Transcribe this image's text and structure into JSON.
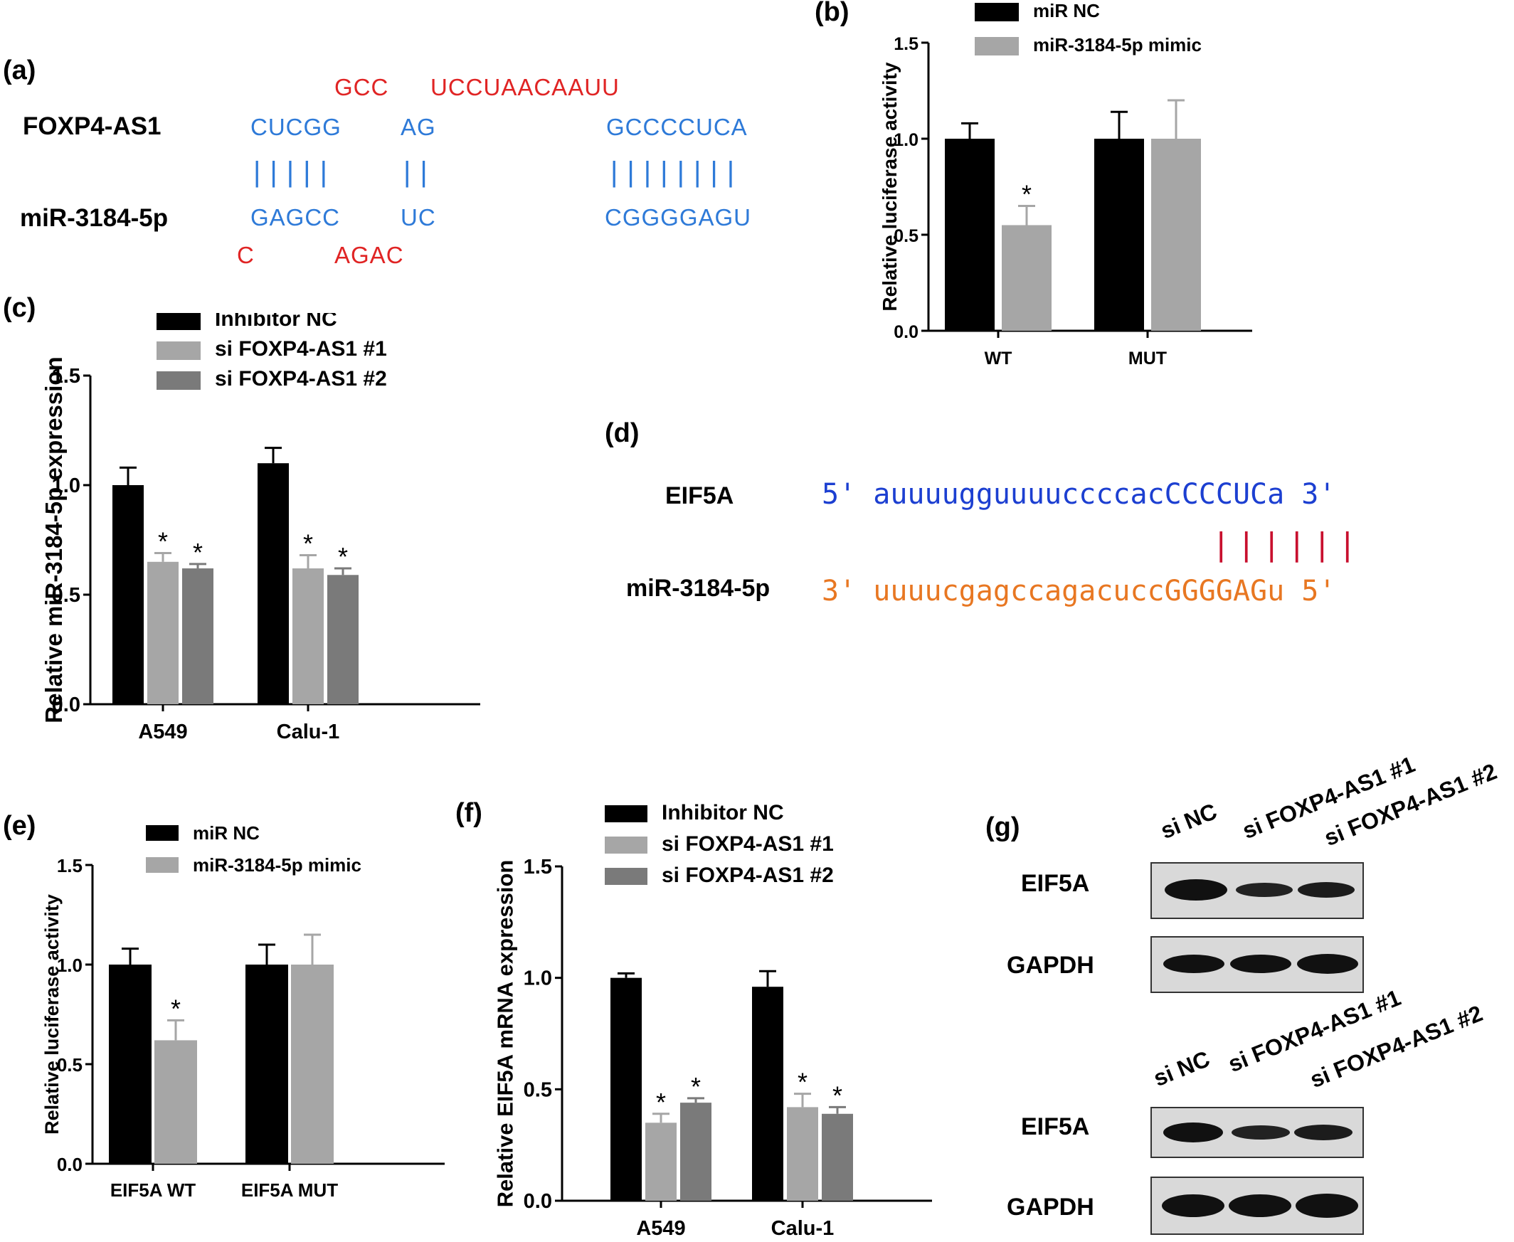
{
  "panels": {
    "a": "(a)",
    "b": "(b)",
    "c": "(c)",
    "d": "(d)",
    "e": "(e)",
    "f": "(f)",
    "g": "(g)"
  },
  "panel_a": {
    "row1_label": "FOXP4-AS1",
    "row2_label": "miR-3184-5p",
    "top_red": [
      "GCC",
      "UCCUAACAAUU"
    ],
    "foxp4_blue": [
      "CUCGG",
      "AG",
      "GCCCCUCA"
    ],
    "pairs": [
      "|||||",
      "||",
      "||||||||"
    ],
    "mir_blue": [
      "GAGCC",
      "UC",
      "CGGGGAGU"
    ],
    "bottom_red": [
      "C",
      "AGAC"
    ]
  },
  "panel_d": {
    "row1_label": "EIF5A",
    "row1_seq": "5' auuuugguuuuccccacCCCCUCa 3'",
    "row2_label": "miR-3184-5p",
    "row2_seq": "3' uuuucgagccagacuccGGGGAGu 5'",
    "pairs": "||||||",
    "color_top": "#1c3fd1",
    "color_bottom": "#e87722",
    "color_pairs": "#c8102e"
  },
  "panel_g": {
    "lanes": [
      "si NC",
      "si FOXP4-AS1 #1",
      "si FOXP4-AS1 #2"
    ],
    "blots": [
      {
        "row1": "EIF5A",
        "row2": "GAPDH"
      },
      {
        "row1": "EIF5A",
        "row2": "GAPDH"
      }
    ]
  },
  "chart_data": [
    {
      "id": "b",
      "type": "bar",
      "ylabel": "Relative luciferase activity",
      "ylim": [
        0,
        1.5
      ],
      "yticks": [
        "0.0",
        "0.5",
        "1.0",
        "1.5"
      ],
      "categories": [
        "WT",
        "MUT"
      ],
      "series": [
        {
          "name": "miR NC",
          "color": "#000000",
          "values": [
            1.0,
            1.0
          ],
          "errors": [
            0.08,
            0.14
          ]
        },
        {
          "name": "miR-3184-5p mimic",
          "color": "#a6a6a6",
          "values": [
            0.55,
            1.0
          ],
          "errors": [
            0.1,
            0.2
          ]
        }
      ],
      "significance": [
        [
          "",
          "*"
        ],
        [
          "",
          ""
        ]
      ],
      "legend": "top"
    },
    {
      "id": "c",
      "type": "bar",
      "ylabel": "Relative miR-3184-5p expression",
      "ylim": [
        0,
        1.5
      ],
      "yticks": [
        "0.0",
        "0.5",
        "1.0",
        "1.5"
      ],
      "categories": [
        "A549",
        "Calu-1"
      ],
      "series": [
        {
          "name": "Inhibitor NC",
          "color": "#000000",
          "values": [
            1.0,
            1.1
          ],
          "errors": [
            0.08,
            0.07
          ]
        },
        {
          "name": "si FOXP4-AS1 #1",
          "color": "#a6a6a6",
          "values": [
            0.65,
            0.62
          ],
          "errors": [
            0.04,
            0.06
          ]
        },
        {
          "name": "si FOXP4-AS1 #2",
          "color": "#7a7a7a",
          "values": [
            0.62,
            0.59
          ],
          "errors": [
            0.02,
            0.03
          ]
        }
      ],
      "significance": [
        [
          "",
          "*",
          "*"
        ],
        [
          "",
          "*",
          "*"
        ]
      ],
      "legend": "top"
    },
    {
      "id": "e",
      "type": "bar",
      "ylabel": "Relative luciferase activity",
      "ylim": [
        0,
        1.5
      ],
      "yticks": [
        "0.0",
        "0.5",
        "1.0",
        "1.5"
      ],
      "categories": [
        "EIF5A WT",
        "EIF5A MUT"
      ],
      "series": [
        {
          "name": "miR NC",
          "color": "#000000",
          "values": [
            1.0,
            1.0
          ],
          "errors": [
            0.08,
            0.1
          ]
        },
        {
          "name": "miR-3184-5p mimic",
          "color": "#a6a6a6",
          "values": [
            0.62,
            1.0
          ],
          "errors": [
            0.1,
            0.15
          ]
        }
      ],
      "significance": [
        [
          "",
          "*"
        ],
        [
          "",
          ""
        ]
      ],
      "legend": "top"
    },
    {
      "id": "f",
      "type": "bar",
      "ylabel": "Relative EIF5A mRNA expression",
      "ylim": [
        0,
        1.5
      ],
      "yticks": [
        "0.0",
        "0.5",
        "1.0",
        "1.5"
      ],
      "categories": [
        "A549",
        "Calu-1"
      ],
      "series": [
        {
          "name": "Inhibitor NC",
          "color": "#000000",
          "values": [
            1.0,
            0.96
          ],
          "errors": [
            0.02,
            0.07
          ]
        },
        {
          "name": "si FOXP4-AS1 #1",
          "color": "#a6a6a6",
          "values": [
            0.35,
            0.42
          ],
          "errors": [
            0.04,
            0.06
          ]
        },
        {
          "name": "si FOXP4-AS1 #2",
          "color": "#7a7a7a",
          "values": [
            0.44,
            0.39
          ],
          "errors": [
            0.02,
            0.03
          ]
        }
      ],
      "significance": [
        [
          "",
          "*",
          "*"
        ],
        [
          "",
          "*",
          "*"
        ]
      ],
      "legend": "top"
    }
  ]
}
